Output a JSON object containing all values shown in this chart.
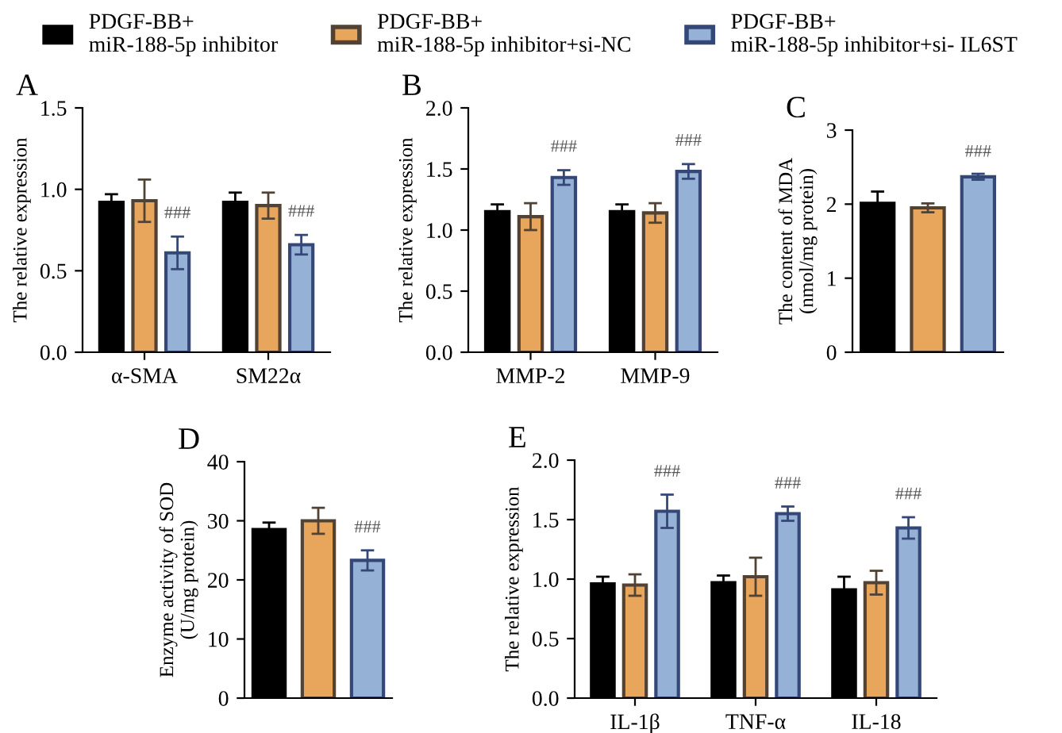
{
  "chart_data": [
    {
      "type": "bar",
      "title": "A",
      "ylabel": "The relative expression",
      "categories": [
        "α-SMA",
        "SM22α"
      ],
      "ylim": [
        0,
        1.5
      ],
      "yticks": [
        {
          "value": 0,
          "label": "0.0"
        },
        0.5,
        {
          "value": 1,
          "label": "1.0"
        },
        1.5
      ],
      "legend": "top",
      "series": [
        {
          "name": "PDGF-BB+\nmiR-188-5p inhibitor",
          "color": "#000000",
          "values": [
            0.92,
            0.92
          ],
          "errors": [
            0.05,
            0.06
          ]
        },
        {
          "name": "PDGF-BB+\nmiR-188-5p inhibitor+si-NC",
          "color": "#e8a55c",
          "values": [
            0.93,
            0.9
          ],
          "errors": [
            0.13,
            0.08
          ]
        },
        {
          "name": "PDGF-BB+\nmiR-188-5p inhibitor+si- IL6ST",
          "color": "#96b1d6",
          "values": [
            0.61,
            0.66
          ],
          "errors": [
            0.1,
            0.06
          ]
        }
      ],
      "annotations": [
        "###",
        "###"
      ]
    },
    {
      "type": "bar",
      "title": "B",
      "ylabel": "The relative expression",
      "categories": [
        "MMP-2",
        "MMP-9"
      ],
      "ylim": [
        0,
        2.0
      ],
      "yticks": [
        {
          "value": 0,
          "label": "0.0"
        },
        0.5,
        {
          "value": 1,
          "label": "1.0"
        },
        1.5,
        {
          "value": 2,
          "label": "2.0"
        }
      ],
      "series": [
        {
          "color": "#000000",
          "values": [
            1.15,
            1.15
          ],
          "errors": [
            0.06,
            0.06
          ]
        },
        {
          "color": "#e8a55c",
          "values": [
            1.11,
            1.14
          ],
          "errors": [
            0.11,
            0.08
          ]
        },
        {
          "color": "#96b1d6",
          "values": [
            1.43,
            1.48
          ],
          "errors": [
            0.06,
            0.06
          ]
        }
      ],
      "annotations": [
        "###",
        "###"
      ]
    },
    {
      "type": "bar",
      "title": "C",
      "ylabel": "The content of MDA\n(nmol/mg protein)",
      "categories": [
        null,
        null,
        null
      ],
      "ylim": [
        0,
        3
      ],
      "yticks": [
        0,
        1,
        2,
        3
      ],
      "values": [
        2.01,
        1.95,
        2.37
      ],
      "colors": [
        "#000000",
        "#e8a55c",
        "#96b1d6"
      ],
      "errors": [
        0.16,
        0.06,
        0.04
      ],
      "annotations": [
        "###"
      ]
    },
    {
      "type": "bar",
      "title": "D",
      "ylabel": "Enzyme activity of SOD\n(U/mg protein)",
      "categories": [
        null,
        null,
        null
      ],
      "ylim": [
        0,
        40
      ],
      "yticks": [
        0,
        10,
        20,
        30,
        40
      ],
      "values": [
        28.5,
        30,
        23.3
      ],
      "colors": [
        "#000000",
        "#e8a55c",
        "#96b1d6"
      ],
      "errors": [
        1.2,
        2.2,
        1.7
      ],
      "annotations": [
        "###"
      ]
    },
    {
      "type": "bar",
      "title": "E",
      "ylabel": "The relative expression",
      "categories": [
        "IL-1β",
        "TNF-α",
        "IL-18"
      ],
      "ylim": [
        0,
        2.0
      ],
      "yticks": [
        {
          "value": 0,
          "label": "0.0"
        },
        0.5,
        {
          "value": 1,
          "label": "1.0"
        },
        1.5,
        {
          "value": 2,
          "label": "2.0"
        }
      ],
      "series": [
        {
          "color": "#000000",
          "values": [
            0.96,
            0.97,
            0.91
          ],
          "errors": [
            0.06,
            0.06,
            0.11
          ]
        },
        {
          "color": "#e8a55c",
          "values": [
            0.95,
            1.02,
            0.97
          ],
          "errors": [
            0.09,
            0.16,
            0.1
          ]
        },
        {
          "color": "#96b1d6",
          "values": [
            1.57,
            1.55,
            1.43
          ],
          "errors": [
            0.14,
            0.06,
            0.09
          ]
        }
      ],
      "annotations": [
        "###",
        "###",
        "###"
      ]
    }
  ]
}
